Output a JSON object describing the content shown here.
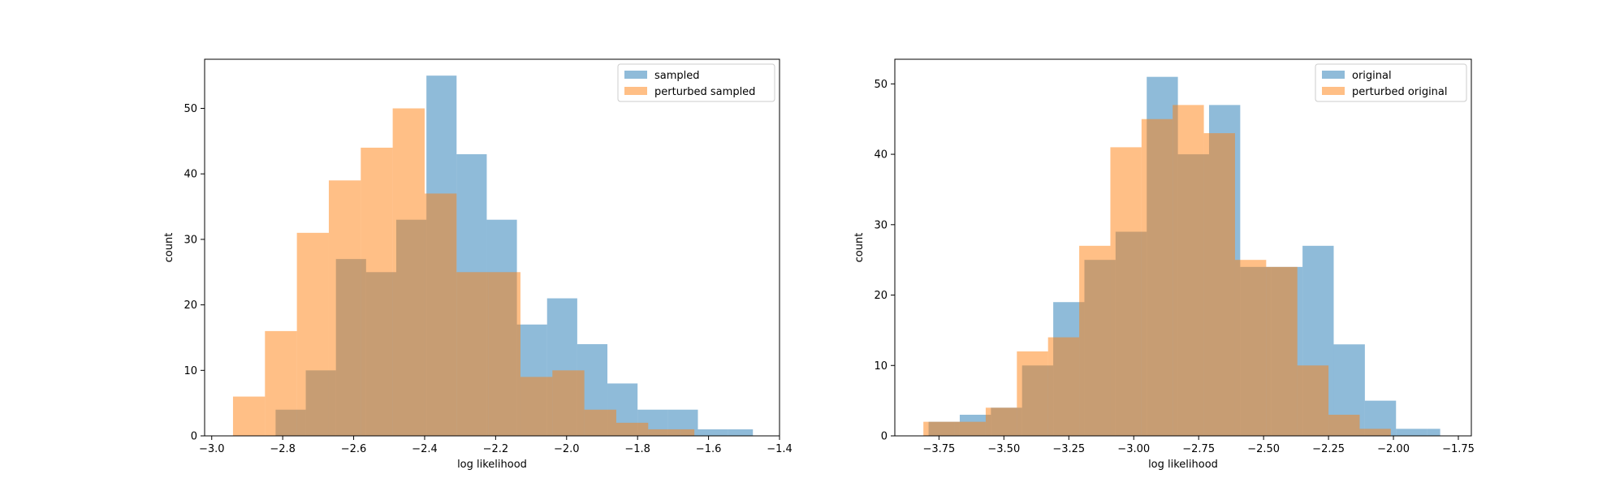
{
  "colors": {
    "blue": "#1f77b4",
    "orange": "#ff7f0e",
    "bar_alpha": 0.5
  },
  "chart_data": [
    {
      "type": "histogram",
      "xlabel": "log likelihood",
      "ylabel": "count",
      "xlim": [
        -3.02,
        -1.4
      ],
      "ylim": [
        0,
        57.5
      ],
      "xticks": [
        -3.0,
        -2.8,
        -2.6,
        -2.4,
        -2.2,
        -2.0,
        -1.8,
        -1.6,
        -1.4
      ],
      "xtick_labels": [
        "−3.0",
        "−2.8",
        "−2.6",
        "−2.4",
        "−2.2",
        "−2.0",
        "−1.8",
        "−1.6",
        "−1.4"
      ],
      "yticks": [
        0,
        10,
        20,
        30,
        40,
        50
      ],
      "ytick_labels": [
        "0",
        "10",
        "20",
        "30",
        "40",
        "50"
      ],
      "legend_position": "top-right",
      "series": [
        {
          "name": "sampled",
          "color": "#1f77b4",
          "bin_edges": [
            -2.82,
            -2.735,
            -2.65,
            -2.565,
            -2.48,
            -2.395,
            -2.31,
            -2.225,
            -2.14,
            -2.055,
            -1.97,
            -1.885,
            -1.8,
            -1.715,
            -1.63,
            -1.545,
            -1.475
          ],
          "counts": [
            4,
            10,
            27,
            25,
            33,
            55,
            43,
            33,
            17,
            21,
            14,
            8,
            4,
            4,
            1,
            1
          ]
        },
        {
          "name": "perturbed sampled",
          "color": "#ff7f0e",
          "bin_edges": [
            -2.94,
            -2.85,
            -2.76,
            -2.67,
            -2.58,
            -2.49,
            -2.4,
            -2.31,
            -2.22,
            -2.13,
            -2.04,
            -1.95,
            -1.86,
            -1.77,
            -1.68,
            -1.64
          ],
          "counts": [
            6,
            16,
            31,
            39,
            44,
            50,
            37,
            25,
            25,
            9,
            10,
            4,
            2,
            1,
            1
          ]
        }
      ]
    },
    {
      "type": "histogram",
      "xlabel": "log likelihood",
      "ylabel": "count",
      "xlim": [
        -3.92,
        -1.7
      ],
      "ylim": [
        0,
        53.5
      ],
      "xticks": [
        -3.75,
        -3.5,
        -3.25,
        -3.0,
        -2.75,
        -2.5,
        -2.25,
        -2.0,
        -1.75
      ],
      "xtick_labels": [
        "−3.75",
        "−3.50",
        "−3.25",
        "−3.00",
        "−2.75",
        "−2.50",
        "−2.25",
        "−2.00",
        "−1.75"
      ],
      "yticks": [
        0,
        10,
        20,
        30,
        40,
        50
      ],
      "ytick_labels": [
        "0",
        "10",
        "20",
        "30",
        "40",
        "50"
      ],
      "legend_position": "top-right",
      "series": [
        {
          "name": "original",
          "color": "#1f77b4",
          "bin_edges": [
            -3.79,
            -3.67,
            -3.55,
            -3.43,
            -3.31,
            -3.19,
            -3.07,
            -2.95,
            -2.83,
            -2.71,
            -2.59,
            -2.47,
            -2.35,
            -2.23,
            -2.11,
            -1.99,
            -1.87,
            -1.82
          ],
          "counts": [
            2,
            3,
            4,
            10,
            19,
            25,
            29,
            51,
            40,
            47,
            24,
            24,
            27,
            13,
            5,
            1,
            1
          ]
        },
        {
          "name": "perturbed original",
          "color": "#ff7f0e",
          "bin_edges": [
            -3.81,
            -3.69,
            -3.57,
            -3.45,
            -3.33,
            -3.21,
            -3.09,
            -2.97,
            -2.85,
            -2.73,
            -2.61,
            -2.49,
            -2.37,
            -2.25,
            -2.13,
            -2.01,
            -1.89
          ],
          "counts": [
            2,
            2,
            4,
            12,
            14,
            27,
            41,
            45,
            47,
            43,
            25,
            24,
            10,
            3,
            1,
            0
          ]
        }
      ]
    }
  ]
}
